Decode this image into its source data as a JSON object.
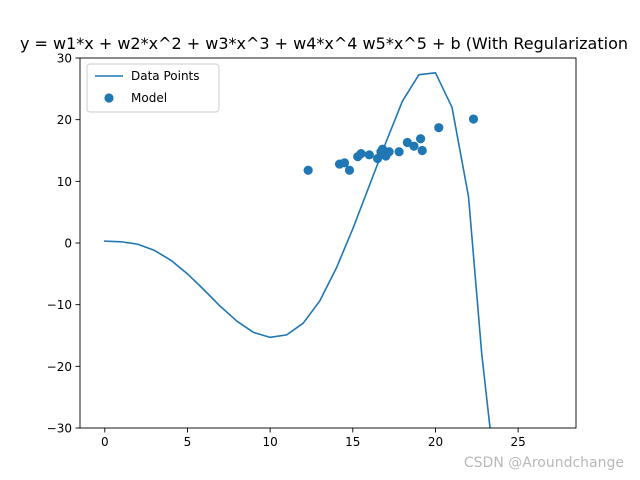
{
  "chart_data": {
    "type": "scatter",
    "title": "y = w1*x + w2*x^2 + w3*x^3 + w4*x^4 w5*x^5 + b (With Regularization",
    "xlim": [
      -1.5,
      28.5
    ],
    "ylim": [
      -30,
      30
    ],
    "xticks": [
      0,
      5,
      10,
      15,
      20,
      25
    ],
    "yticks": [
      -30,
      -20,
      -10,
      0,
      10,
      20,
      30
    ],
    "grid": false,
    "legend_position": "top-left",
    "line_series": {
      "name": "Data Points",
      "color": "#1f77b4",
      "x": [
        0,
        1,
        2,
        3,
        4,
        5,
        6,
        7,
        8,
        9,
        10,
        11,
        12,
        13,
        14,
        15,
        16,
        17,
        18,
        19,
        20,
        21,
        22,
        22.8,
        23.3
      ],
      "y": [
        0.3,
        0.2,
        -0.2,
        -1.2,
        -2.8,
        -5,
        -7.6,
        -10.3,
        -12.7,
        -14.5,
        -15.3,
        -14.9,
        -13,
        -9.4,
        -4.1,
        2.3,
        9.3,
        16.3,
        23,
        27.3,
        27.6,
        22,
        7.5,
        -18,
        -30
      ]
    },
    "scatter_series": {
      "name": "Model",
      "color": "#1f77b4",
      "x": [
        12.3,
        14.2,
        14.5,
        14.8,
        15.3,
        15.5,
        16.0,
        16.5,
        16.7,
        16.8,
        16.9,
        17.0,
        17.2,
        17.8,
        18.3,
        18.7,
        19.1,
        19.2,
        20.2,
        22.3
      ],
      "y": [
        11.8,
        12.8,
        13.0,
        11.8,
        14.0,
        14.5,
        14.3,
        13.7,
        14.8,
        15.2,
        14.8,
        14.1,
        14.8,
        14.8,
        16.3,
        15.7,
        16.9,
        15.0,
        18.7,
        20.1
      ]
    }
  },
  "watermark": "CSDN @Aroundchange"
}
